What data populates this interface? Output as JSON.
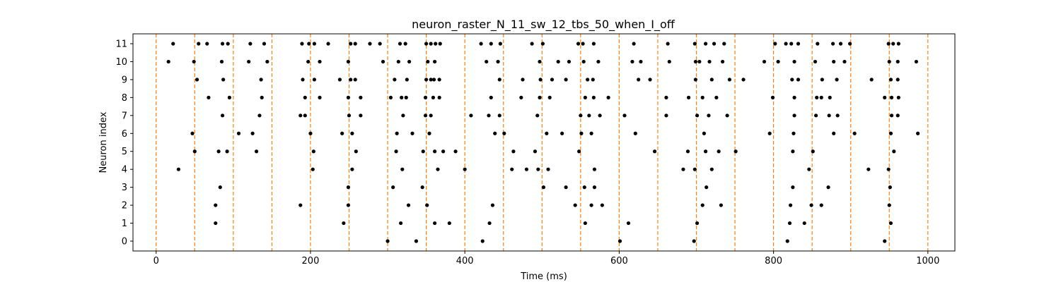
{
  "chart_data": {
    "type": "scatter",
    "title": "neuron_raster_N_11_sw_12_tbs_50_when_I_off",
    "xlabel": "Time (ms)",
    "ylabel": "Neuron index",
    "xlim": [
      -30,
      1035
    ],
    "ylim": [
      -0.55,
      11.55
    ],
    "xticks": [
      0,
      200,
      400,
      600,
      800,
      1000
    ],
    "yticks": [
      0,
      1,
      2,
      3,
      4,
      5,
      6,
      7,
      8,
      9,
      10,
      11
    ],
    "grid": false,
    "marker_color": "#000000",
    "vline_color": "#ff7f0e",
    "vlines": [
      0,
      50,
      100,
      150,
      200,
      250,
      300,
      350,
      400,
      450,
      500,
      550,
      600,
      650,
      700,
      750,
      800,
      850,
      900,
      950,
      1000
    ],
    "series": [
      {
        "values": [
          [
            300,
            0
          ],
          [
            337,
            0
          ],
          [
            423,
            0
          ],
          [
            601,
            0
          ],
          [
            697,
            0
          ],
          [
            818,
            0
          ],
          [
            944,
            0
          ],
          [
            77,
            1
          ],
          [
            243,
            1
          ],
          [
            317,
            1
          ],
          [
            361,
            1
          ],
          [
            380,
            1
          ],
          [
            432,
            1
          ],
          [
            556,
            1
          ],
          [
            612,
            1
          ],
          [
            701,
            1
          ],
          [
            821,
            1
          ],
          [
            840,
            1
          ],
          [
            952,
            1
          ],
          [
            77,
            2
          ],
          [
            187,
            2
          ],
          [
            249,
            2
          ],
          [
            327,
            2
          ],
          [
            351,
            2
          ],
          [
            436,
            2
          ],
          [
            543,
            2
          ],
          [
            564,
            2
          ],
          [
            578,
            2
          ],
          [
            708,
            2
          ],
          [
            732,
            2
          ],
          [
            822,
            2
          ],
          [
            849,
            2
          ],
          [
            862,
            2
          ],
          [
            950,
            2
          ],
          [
            83,
            3
          ],
          [
            249,
            3
          ],
          [
            307,
            3
          ],
          [
            345,
            3
          ],
          [
            502,
            3
          ],
          [
            531,
            3
          ],
          [
            555,
            3
          ],
          [
            568,
            3
          ],
          [
            713,
            3
          ],
          [
            825,
            3
          ],
          [
            871,
            3
          ],
          [
            951,
            3
          ],
          [
            29,
            4
          ],
          [
            203,
            4
          ],
          [
            254,
            4
          ],
          [
            319,
            4
          ],
          [
            365,
            4
          ],
          [
            400,
            4
          ],
          [
            461,
            4
          ],
          [
            480,
            4
          ],
          [
            495,
            4
          ],
          [
            508,
            4
          ],
          [
            568,
            4
          ],
          [
            683,
            4
          ],
          [
            698,
            4
          ],
          [
            720,
            4
          ],
          [
            846,
            4
          ],
          [
            923,
            4
          ],
          [
            949,
            4
          ],
          [
            50,
            5
          ],
          [
            81,
            5
          ],
          [
            92,
            5
          ],
          [
            130,
            5
          ],
          [
            204,
            5
          ],
          [
            259,
            5
          ],
          [
            311,
            5
          ],
          [
            346,
            5
          ],
          [
            361,
            5
          ],
          [
            372,
            5
          ],
          [
            388,
            5
          ],
          [
            463,
            5
          ],
          [
            491,
            5
          ],
          [
            548,
            5
          ],
          [
            646,
            5
          ],
          [
            689,
            5
          ],
          [
            712,
            5
          ],
          [
            729,
            5
          ],
          [
            751,
            5
          ],
          [
            825,
            5
          ],
          [
            851,
            5
          ],
          [
            956,
            5
          ],
          [
            47,
            6
          ],
          [
            107,
            6
          ],
          [
            125,
            6
          ],
          [
            200,
            6
          ],
          [
            241,
            6
          ],
          [
            254,
            6
          ],
          [
            312,
            6
          ],
          [
            332,
            6
          ],
          [
            354,
            6
          ],
          [
            439,
            6
          ],
          [
            451,
            6
          ],
          [
            506,
            6
          ],
          [
            526,
            6
          ],
          [
            551,
            6
          ],
          [
            564,
            6
          ],
          [
            621,
            6
          ],
          [
            710,
            6
          ],
          [
            795,
            6
          ],
          [
            826,
            6
          ],
          [
            878,
            6
          ],
          [
            905,
            6
          ],
          [
            952,
            6
          ],
          [
            987,
            6
          ]
        ]
      },
      {
        "values": [
          [
            86,
            7
          ],
          [
            134,
            7
          ],
          [
            187,
            7
          ],
          [
            193,
            7
          ],
          [
            250,
            7
          ],
          [
            265,
            7
          ],
          [
            320,
            7
          ],
          [
            349,
            7
          ],
          [
            356,
            7
          ],
          [
            408,
            7
          ],
          [
            431,
            7
          ],
          [
            445,
            7
          ],
          [
            494,
            7
          ],
          [
            550,
            7
          ],
          [
            561,
            7
          ],
          [
            575,
            7
          ],
          [
            607,
            7
          ],
          [
            661,
            7
          ],
          [
            701,
            7
          ],
          [
            716,
            7
          ],
          [
            740,
            7
          ],
          [
            827,
            7
          ],
          [
            855,
            7
          ],
          [
            872,
            7
          ],
          [
            883,
            7
          ],
          [
            953,
            7
          ],
          [
            961,
            7
          ],
          [
            68,
            8
          ],
          [
            95,
            8
          ],
          [
            137,
            8
          ],
          [
            193,
            8
          ],
          [
            212,
            8
          ],
          [
            249,
            8
          ],
          [
            265,
            8
          ],
          [
            304,
            8
          ],
          [
            318,
            8
          ],
          [
            324,
            8
          ],
          [
            349,
            8
          ],
          [
            359,
            8
          ],
          [
            367,
            8
          ],
          [
            434,
            8
          ],
          [
            473,
            8
          ],
          [
            497,
            8
          ],
          [
            510,
            8
          ],
          [
            556,
            8
          ],
          [
            567,
            8
          ],
          [
            586,
            8
          ],
          [
            661,
            8
          ],
          [
            690,
            8
          ],
          [
            708,
            8
          ],
          [
            726,
            8
          ],
          [
            799,
            8
          ],
          [
            827,
            8
          ],
          [
            856,
            8
          ],
          [
            862,
            8
          ],
          [
            873,
            8
          ],
          [
            944,
            8
          ],
          [
            953,
            8
          ],
          [
            962,
            8
          ],
          [
            53,
            9
          ],
          [
            87,
            9
          ],
          [
            136,
            9
          ],
          [
            190,
            9
          ],
          [
            205,
            9
          ],
          [
            238,
            9
          ],
          [
            252,
            9
          ],
          [
            258,
            9
          ],
          [
            309,
            9
          ],
          [
            325,
            9
          ],
          [
            350,
            9
          ],
          [
            356,
            9
          ],
          [
            360,
            9
          ],
          [
            367,
            9
          ],
          [
            445,
            9
          ],
          [
            475,
            9
          ],
          [
            498,
            9
          ],
          [
            513,
            9
          ],
          [
            531,
            9
          ],
          [
            559,
            9
          ],
          [
            566,
            9
          ],
          [
            625,
            9
          ],
          [
            640,
            9
          ],
          [
            699,
            9
          ],
          [
            720,
            9
          ],
          [
            743,
            9
          ],
          [
            761,
            9
          ],
          [
            824,
            9
          ],
          [
            832,
            9
          ],
          [
            863,
            9
          ],
          [
            882,
            9
          ],
          [
            927,
            9
          ],
          [
            952,
            9
          ],
          [
            961,
            9
          ],
          [
            16,
            10
          ],
          [
            49,
            10
          ],
          [
            85,
            10
          ],
          [
            120,
            10
          ],
          [
            144,
            10
          ],
          [
            197,
            10
          ],
          [
            212,
            10
          ],
          [
            249,
            10
          ],
          [
            294,
            10
          ],
          [
            314,
            10
          ],
          [
            328,
            10
          ],
          [
            352,
            10
          ],
          [
            361,
            10
          ],
          [
            428,
            10
          ],
          [
            443,
            10
          ],
          [
            497,
            10
          ],
          [
            521,
            10
          ],
          [
            535,
            10
          ],
          [
            554,
            10
          ],
          [
            573,
            10
          ],
          [
            617,
            10
          ],
          [
            628,
            10
          ],
          [
            665,
            10
          ],
          [
            699,
            10
          ],
          [
            704,
            10
          ],
          [
            717,
            10
          ],
          [
            734,
            10
          ],
          [
            788,
            10
          ],
          [
            806,
            10
          ],
          [
            827,
            10
          ],
          [
            854,
            10
          ],
          [
            878,
            10
          ],
          [
            892,
            10
          ],
          [
            950,
            10
          ],
          [
            961,
            10
          ],
          [
            985,
            10
          ],
          [
            22,
            11
          ],
          [
            55,
            11
          ],
          [
            66,
            11
          ],
          [
            86,
            11
          ],
          [
            93,
            11
          ],
          [
            122,
            11
          ],
          [
            140,
            11
          ],
          [
            189,
            11
          ],
          [
            198,
            11
          ],
          [
            205,
            11
          ],
          [
            223,
            11
          ],
          [
            252,
            11
          ],
          [
            258,
            11
          ],
          [
            277,
            11
          ],
          [
            290,
            11
          ],
          [
            316,
            11
          ],
          [
            323,
            11
          ],
          [
            350,
            11
          ],
          [
            356,
            11
          ],
          [
            362,
            11
          ],
          [
            368,
            11
          ],
          [
            421,
            11
          ],
          [
            434,
            11
          ],
          [
            446,
            11
          ],
          [
            487,
            11
          ],
          [
            501,
            11
          ],
          [
            547,
            11
          ],
          [
            553,
            11
          ],
          [
            567,
            11
          ],
          [
            619,
            11
          ],
          [
            663,
            11
          ],
          [
            698,
            11
          ],
          [
            712,
            11
          ],
          [
            723,
            11
          ],
          [
            736,
            11
          ],
          [
            802,
            11
          ],
          [
            816,
            11
          ],
          [
            823,
            11
          ],
          [
            832,
            11
          ],
          [
            857,
            11
          ],
          [
            877,
            11
          ],
          [
            887,
            11
          ],
          [
            899,
            11
          ],
          [
            949,
            11
          ],
          [
            955,
            11
          ],
          [
            962,
            11
          ]
        ]
      }
    ]
  }
}
